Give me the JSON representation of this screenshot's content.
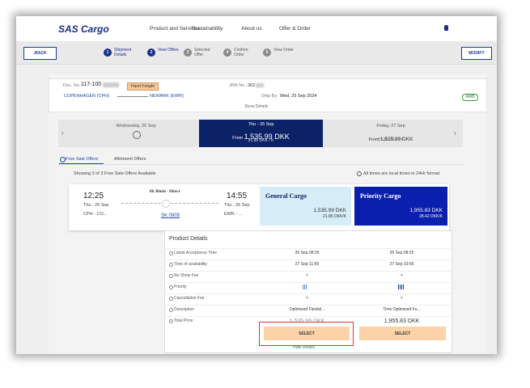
{
  "header": {
    "logo": "SAS Cargo",
    "nav": [
      "Product and Services",
      "Sustainability",
      "About us",
      "Offer & Order"
    ]
  },
  "stepbar": {
    "back": "BACK",
    "modify": "MODIFY",
    "steps": [
      {
        "number": "1",
        "label": "Shipment Details"
      },
      {
        "number": "2",
        "label": "View Offers"
      },
      {
        "number": "3",
        "label": "Selected Offer"
      },
      {
        "number": "4",
        "label": "Confirm Order"
      },
      {
        "number": "5",
        "label": "View Order"
      }
    ]
  },
  "shipment": {
    "doc_label": "Doc. No.:",
    "doc_no": "117-100",
    "tag": "Hand Freight",
    "jrn_label": "JRN No.:",
    "jrn_no": "362",
    "origin": "COPENHAGEN (CPH)",
    "destination": "NEWARK (EWR)",
    "ship_by_label": "Ship By:",
    "ship_by": "Wed, 25 Sep 2024",
    "badge": "AWB",
    "show_details": "Show Details"
  },
  "dates": [
    {
      "day": "Wednesday, 25 Sep"
    },
    {
      "day": "Thu - 26 Sep",
      "from": "From",
      "price": "1,535.99 DKK",
      "rate": "21.86 DKK / K"
    },
    {
      "day": "Friday, 27 Sep",
      "from": "From",
      "price": "1,535.99 DKK",
      "rate": "21.86 DKK / K"
    }
  ],
  "tabs": [
    "Free Sale Offers",
    "Allotment Offers"
  ],
  "summary": {
    "showing": "Showing 3 of 3 Free Sale Offers Available",
    "note": "All times are local times in 24Hr format"
  },
  "flight": {
    "dep_time": "12:25",
    "dep_date": "Thu , 26 Sep",
    "dep_airport": "CPH - CO...",
    "duration": "0h 30min - Direct",
    "flight_no": "SK 0909",
    "arr_time": "14:55",
    "arr_date": "Thu , 26 Sep",
    "arr_airport": "EWR - ..."
  },
  "products": [
    {
      "name": "General Cargo",
      "price": "1,535.99 DKK",
      "rate": "21.86 DKK/K"
    },
    {
      "name": "Priority Cargo",
      "price": "1,955.83 DKK",
      "rate": "28.42 DKK/K"
    }
  ],
  "details": {
    "title": "Product Details",
    "rows": [
      {
        "label": "Latest Acceptance Time",
        "values": [
          "26 Sep 08:25",
          "26 Sep 08:25"
        ]
      },
      {
        "label": "Time of availability",
        "values": [
          "27 Sep 11:55",
          "27 Sep 10:55"
        ]
      },
      {
        "label": "No Show Fee",
        "values": [
          "×",
          "×"
        ]
      },
      {
        "label": "Priority"
      },
      {
        "label": "Cancellation Fee",
        "values": [
          "×",
          "×"
        ]
      },
      {
        "label": "Description",
        "values": [
          "Optimized Flexibil...",
          "Time Optimized Fo..."
        ]
      },
      {
        "label": "Total Price",
        "values": [
          "1,535.99 DKK",
          "1,955.83 DKK"
        ]
      }
    ],
    "select": "SELECT",
    "hide": "Hide Details"
  }
}
